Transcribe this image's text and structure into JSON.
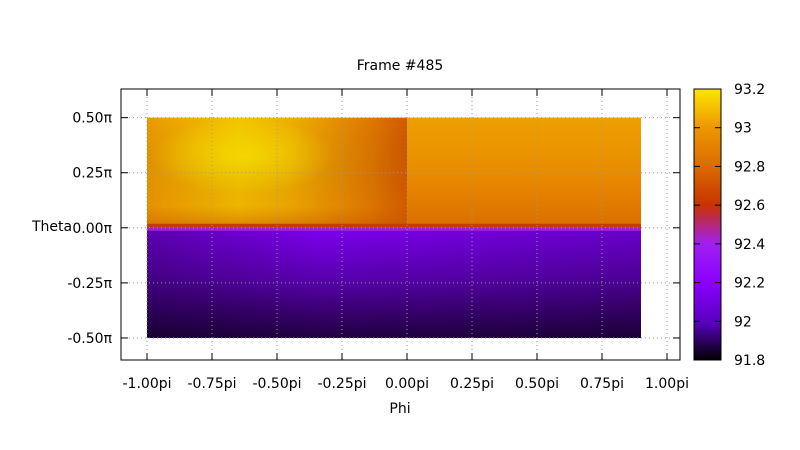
{
  "chart_data": {
    "type": "heatmap",
    "title": "Frame #485",
    "xlabel": "Phi",
    "ylabel": "Theta",
    "xlim_pi": [
      -1.1,
      1.05
    ],
    "ylim_pi": [
      -0.6,
      0.63
    ],
    "x_ticks": [
      {
        "value_pi": -1.0,
        "label": "-1.00pi"
      },
      {
        "value_pi": -0.75,
        "label": "-0.75pi"
      },
      {
        "value_pi": -0.5,
        "label": "-0.50pi"
      },
      {
        "value_pi": -0.25,
        "label": "-0.25pi"
      },
      {
        "value_pi": 0.0,
        "label": "0.00pi"
      },
      {
        "value_pi": 0.25,
        "label": "0.25pi"
      },
      {
        "value_pi": 0.5,
        "label": "0.50pi"
      },
      {
        "value_pi": 0.75,
        "label": "0.75pi"
      },
      {
        "value_pi": 1.0,
        "label": "1.00pi"
      }
    ],
    "y_ticks": [
      {
        "value_pi": 0.5,
        "label": "0.50π"
      },
      {
        "value_pi": 0.25,
        "label": "0.25π"
      },
      {
        "value_pi": 0.0,
        "label": "0.00π"
      },
      {
        "value_pi": -0.25,
        "label": "-0.25π"
      },
      {
        "value_pi": -0.5,
        "label": "-0.50π"
      }
    ],
    "grid": true,
    "data_extent_pi": {
      "phi": [
        -1.0,
        0.9
      ],
      "theta": [
        -0.5,
        0.5
      ]
    },
    "regions": [
      {
        "phi_pi": [
          -1.0,
          0.0
        ],
        "theta_pi": [
          0.0,
          0.5
        ],
        "value_range": [
          92.75,
          93.15
        ],
        "peak_value": 93.15,
        "peak_at_pi": {
          "phi": -0.63,
          "theta": 0.3
        }
      },
      {
        "phi_pi": [
          0.0,
          0.9
        ],
        "theta_pi": [
          0.0,
          0.5
        ],
        "value_range": [
          92.75,
          92.95
        ]
      },
      {
        "phi_pi": [
          -1.0,
          0.9
        ],
        "theta_pi": [
          -0.5,
          0.0
        ],
        "value_range": [
          91.85,
          92.15
        ],
        "min_value": 91.85,
        "min_at_pi": {
          "phi": -1.0,
          "theta": -0.5
        }
      },
      {
        "phi_pi": [
          -1.0,
          0.9
        ],
        "theta_pi": [
          0.0,
          0.02
        ],
        "value": 92.55
      }
    ],
    "colorbar": {
      "min": 91.8,
      "max": 93.2,
      "ticks": [
        "91.8",
        "92",
        "92.2",
        "92.4",
        "92.6",
        "92.8",
        "93",
        "93.2"
      ],
      "colormap": [
        "#000000",
        "#5a00c0",
        "#8c00ff",
        "#a020f0",
        "#c83200",
        "#d96a00",
        "#ee9800",
        "#ffe600"
      ]
    }
  }
}
